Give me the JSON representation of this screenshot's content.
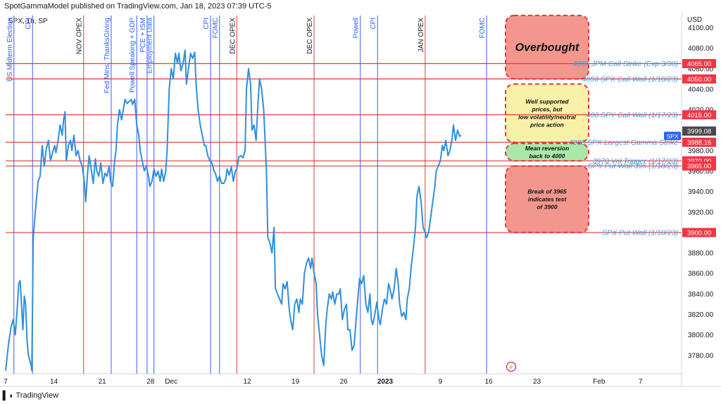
{
  "header": {
    "publisher": "SpotGammaModel published on TradingView.com, Jan 18, 2023 07:39 UTC-5",
    "symbol": "SPX, 1h, SP"
  },
  "branding": {
    "logo_text": "TradingView"
  },
  "colors": {
    "price_line": "#2f8fdc",
    "level_line": "#e03a3a",
    "event_blue": "#3d5afe",
    "event_red": "#e03a3a",
    "level_label": "#4a9ad8",
    "badge_red": "#f23645",
    "badge_dark": "#4a4a4a",
    "badge_blue": "#2962ff"
  },
  "chart_data": {
    "type": "line",
    "x_axis": {
      "ticks": [
        {
          "label": "7",
          "d": 0
        },
        {
          "label": "14",
          "d": 7
        },
        {
          "label": "21",
          "d": 14
        },
        {
          "label": "28",
          "d": 21
        },
        {
          "label": "Dec",
          "d": 24
        },
        {
          "label": "12",
          "d": 35
        },
        {
          "label": "19",
          "d": 42
        },
        {
          "label": "26",
          "d": 49
        },
        {
          "label": "2023",
          "d": 55
        },
        {
          "label": "9",
          "d": 63
        },
        {
          "label": "16",
          "d": 70
        },
        {
          "label": "23",
          "d": 77
        },
        {
          "label": "Feb",
          "d": 86
        },
        {
          "label": "7",
          "d": 92
        }
      ]
    },
    "y_axis": {
      "label": "USD",
      "range": [
        3762,
        4112
      ],
      "ticks": [
        3780,
        3800,
        3820,
        3840,
        3860,
        3880,
        3920,
        3940,
        3960,
        3980,
        4000,
        4020,
        4040,
        4060,
        4080,
        4100
      ]
    },
    "series": [
      {
        "values": [
          [
            0.0,
            3765
          ],
          [
            0.4,
            3790
          ],
          [
            0.8,
            3808
          ],
          [
            1.1,
            3815
          ],
          [
            1.4,
            3800
          ],
          [
            1.7,
            3828
          ],
          [
            1.9,
            3850
          ],
          [
            2.1,
            3853
          ],
          [
            2.3,
            3830
          ],
          [
            2.5,
            3805
          ],
          [
            2.7,
            3838
          ],
          [
            2.9,
            3830
          ],
          [
            3.1,
            3795
          ],
          [
            3.3,
            3780
          ],
          [
            3.5,
            3775
          ],
          [
            3.7,
            3770
          ],
          [
            3.8,
            3765
          ],
          [
            4.0,
            3895
          ],
          [
            4.3,
            3920
          ],
          [
            4.7,
            3950
          ],
          [
            5.0,
            3955
          ],
          [
            5.3,
            3985
          ],
          [
            5.6,
            3965
          ],
          [
            5.9,
            3982
          ],
          [
            6.2,
            3990
          ],
          [
            6.5,
            3970
          ],
          [
            6.8,
            3978
          ],
          [
            7.1,
            3985
          ],
          [
            7.3,
            3978
          ],
          [
            7.6,
            3990
          ],
          [
            7.9,
            4005
          ],
          [
            8.2,
            3995
          ],
          [
            8.4,
            4010
          ],
          [
            8.6,
            4018
          ],
          [
            8.8,
            3970
          ],
          [
            9.1,
            3985
          ],
          [
            9.4,
            3990
          ],
          [
            9.6,
            3980
          ],
          [
            9.9,
            3995
          ],
          [
            10.2,
            3975
          ],
          [
            10.5,
            3980
          ],
          [
            10.8,
            3970
          ],
          [
            11.1,
            3965
          ],
          [
            11.4,
            3950
          ],
          [
            11.6,
            3930
          ],
          [
            11.9,
            3960
          ],
          [
            12.1,
            3975
          ],
          [
            12.4,
            3962
          ],
          [
            12.7,
            3948
          ],
          [
            13.0,
            3972
          ],
          [
            13.2,
            3960
          ],
          [
            13.5,
            3955
          ],
          [
            13.8,
            3968
          ],
          [
            14.1,
            3948
          ],
          [
            14.4,
            3958
          ],
          [
            14.7,
            3955
          ],
          [
            15.0,
            3965
          ],
          [
            15.2,
            3950
          ],
          [
            15.5,
            3945
          ],
          [
            15.8,
            3970
          ],
          [
            16.0,
            3980
          ],
          [
            16.2,
            4005
          ],
          [
            16.5,
            4020
          ],
          [
            16.8,
            4010
          ],
          [
            17.1,
            4022
          ],
          [
            17.3,
            4030
          ],
          [
            17.6,
            4026
          ],
          [
            17.9,
            4028
          ],
          [
            18.2,
            4030
          ],
          [
            18.4,
            4025
          ],
          [
            18.7,
            4030
          ],
          [
            19.0,
            4005
          ],
          [
            19.3,
            3995
          ],
          [
            19.5,
            3980
          ],
          [
            19.8,
            3970
          ],
          [
            20.1,
            3960
          ],
          [
            20.4,
            3965
          ],
          [
            20.7,
            3955
          ],
          [
            20.9,
            3945
          ],
          [
            21.2,
            3950
          ],
          [
            21.5,
            3962
          ],
          [
            21.8,
            3955
          ],
          [
            22.1,
            3960
          ],
          [
            22.4,
            3950
          ],
          [
            22.6,
            3962
          ],
          [
            22.9,
            3950
          ],
          [
            23.2,
            3960
          ],
          [
            23.4,
            3980
          ],
          [
            23.7,
            4040
          ],
          [
            24.0,
            4060
          ],
          [
            24.3,
            4050
          ],
          [
            24.6,
            4075
          ],
          [
            24.9,
            4065
          ],
          [
            25.1,
            4075
          ],
          [
            25.4,
            4058
          ],
          [
            25.7,
            4065
          ],
          [
            26.0,
            4078
          ],
          [
            26.2,
            4045
          ],
          [
            26.5,
            4060
          ],
          [
            26.8,
            4075
          ],
          [
            27.1,
            4070
          ],
          [
            27.4,
            4076
          ],
          [
            27.6,
            4045
          ],
          [
            27.9,
            4020
          ],
          [
            28.2,
            4005
          ],
          [
            28.5,
            3995
          ],
          [
            28.8,
            3985
          ],
          [
            29.0,
            3985
          ],
          [
            29.3,
            3975
          ],
          [
            29.6,
            3970
          ],
          [
            29.9,
            3968
          ],
          [
            30.2,
            3960
          ],
          [
            30.4,
            3958
          ],
          [
            30.7,
            3950
          ],
          [
            31.0,
            3955
          ],
          [
            31.3,
            3948
          ],
          [
            31.6,
            3948
          ],
          [
            31.9,
            3952
          ],
          [
            32.1,
            3962
          ],
          [
            32.4,
            3956
          ],
          [
            32.7,
            3964
          ],
          [
            33.0,
            3950
          ],
          [
            33.3,
            3960
          ],
          [
            33.5,
            3962
          ],
          [
            33.8,
            3974
          ],
          [
            34.1,
            3975
          ],
          [
            34.4,
            3973
          ],
          [
            34.7,
            3980
          ],
          [
            34.9,
            4040
          ],
          [
            35.2,
            4060
          ],
          [
            35.5,
            4045
          ],
          [
            35.7,
            4000
          ],
          [
            36.0,
            4005
          ],
          [
            36.3,
            3990
          ],
          [
            36.6,
            4030
          ],
          [
            36.8,
            4050
          ],
          [
            37.1,
            4040
          ],
          [
            37.4,
            4020
          ],
          [
            37.6,
            3990
          ],
          [
            37.8,
            3960
          ],
          [
            38.0,
            3895
          ],
          [
            38.3,
            3890
          ],
          [
            38.6,
            3880
          ],
          [
            38.9,
            3905
          ],
          [
            39.1,
            3845
          ],
          [
            39.4,
            3840
          ],
          [
            39.7,
            3835
          ],
          [
            40.0,
            3830
          ],
          [
            40.2,
            3850
          ],
          [
            40.5,
            3845
          ],
          [
            40.8,
            3852
          ],
          [
            41.1,
            3825
          ],
          [
            41.3,
            3815
          ],
          [
            41.6,
            3805
          ],
          [
            41.9,
            3830
          ],
          [
            42.2,
            3835
          ],
          [
            42.5,
            3822
          ],
          [
            42.7,
            3835
          ],
          [
            43.0,
            3830
          ],
          [
            43.3,
            3860
          ],
          [
            43.6,
            3870
          ],
          [
            43.9,
            3875
          ],
          [
            44.2,
            3865
          ],
          [
            44.4,
            3875
          ],
          [
            44.7,
            3860
          ],
          [
            45.0,
            3850
          ],
          [
            45.2,
            3820
          ],
          [
            45.5,
            3800
          ],
          [
            45.8,
            3780
          ],
          [
            46.1,
            3770
          ],
          [
            46.4,
            3810
          ],
          [
            46.6,
            3825
          ],
          [
            46.9,
            3840
          ],
          [
            47.2,
            3835
          ],
          [
            47.4,
            3842
          ],
          [
            47.7,
            3830
          ],
          [
            48.0,
            3840
          ],
          [
            48.3,
            3840
          ],
          [
            48.5,
            3845
          ],
          [
            48.8,
            3815
          ],
          [
            49.1,
            3825
          ],
          [
            49.4,
            3830
          ],
          [
            49.6,
            3805
          ],
          [
            49.9,
            3805
          ],
          [
            50.2,
            3785
          ],
          [
            50.5,
            3790
          ],
          [
            50.8,
            3815
          ],
          [
            51.1,
            3840
          ],
          [
            51.3,
            3855
          ],
          [
            51.6,
            3850
          ],
          [
            51.9,
            3858
          ],
          [
            52.2,
            3830
          ],
          [
            52.5,
            3822
          ],
          [
            52.8,
            3840
          ],
          [
            53.0,
            3815
          ],
          [
            53.2,
            3810
          ],
          [
            53.5,
            3820
          ],
          [
            53.8,
            3832
          ],
          [
            54.1,
            3815
          ],
          [
            54.3,
            3810
          ],
          [
            54.6,
            3825
          ],
          [
            54.9,
            3835
          ],
          [
            55.2,
            3830
          ],
          [
            55.5,
            3850
          ],
          [
            55.7,
            3845
          ],
          [
            56.0,
            3835
          ],
          [
            56.3,
            3845
          ],
          [
            56.6,
            3865
          ],
          [
            56.9,
            3850
          ],
          [
            57.1,
            3830
          ],
          [
            57.4,
            3818
          ],
          [
            57.7,
            3822
          ],
          [
            58.0,
            3815
          ],
          [
            58.2,
            3835
          ],
          [
            58.5,
            3845
          ],
          [
            58.8,
            3868
          ],
          [
            59.1,
            3885
          ],
          [
            59.4,
            3905
          ],
          [
            59.6,
            3935
          ],
          [
            59.9,
            3945
          ],
          [
            60.2,
            3930
          ],
          [
            60.5,
            3905
          ],
          [
            60.8,
            3900
          ],
          [
            61.0,
            3895
          ],
          [
            61.3,
            3900
          ],
          [
            61.6,
            3915
          ],
          [
            61.9,
            3930
          ],
          [
            62.2,
            3945
          ],
          [
            62.4,
            3960
          ],
          [
            62.7,
            3965
          ],
          [
            63.0,
            3970
          ],
          [
            63.3,
            3985
          ],
          [
            63.5,
            3980
          ],
          [
            63.8,
            3990
          ],
          [
            64.1,
            3975
          ],
          [
            64.4,
            3980
          ],
          [
            64.7,
            3992
          ],
          [
            64.9,
            4005
          ],
          [
            65.2,
            3990
          ],
          [
            65.5,
            4000
          ],
          [
            65.8,
            3994
          ],
          [
            66.0,
            3995
          ]
        ]
      }
    ],
    "levels": [
      {
        "price": 4065,
        "label": "4065 JPM Call Strike (Exp 3/30)",
        "badge": "4065.00"
      },
      {
        "price": 4050,
        "label": "4050 SPX Call Wall (1/18/23)",
        "badge": "4050.00"
      },
      {
        "price": 4015,
        "label": "400 SPY Call Wall (1/17/23)",
        "badge": "4015.00"
      },
      {
        "price": 3988.16,
        "label": "4000 SPX Largest Gamma Strike",
        "badge": "3988.16"
      },
      {
        "price": 3970,
        "label": "3970 Vol Trigger (1/17/23)",
        "badge": "3970.00"
      },
      {
        "price": 3965,
        "label": "SPY Put Wall 395 (1/18/23)",
        "badge": "3965.00"
      },
      {
        "price": 3900,
        "label": "SPX Put Wall (1/18/23)",
        "badge": "3900.00"
      }
    ],
    "current_price": {
      "badge": "3999.08",
      "symbol": "SPX",
      "value": 3999.08
    },
    "events": [
      {
        "label": "US Midterm Election",
        "d": 1.2,
        "color": "blue"
      },
      {
        "label": "CPI",
        "d": 3.9,
        "color": "blue"
      },
      {
        "label": "NOV OPEX",
        "d": 11.3,
        "color": "red"
      },
      {
        "label": "Fed Mins, ThanksGiving",
        "d": 15.3,
        "color": "blue"
      },
      {
        "label": "Powell Speaking + GDP",
        "d": 19.0,
        "color": "blue"
      },
      {
        "label": "PCE + ISM",
        "d": 20.5,
        "color": "blue"
      },
      {
        "label": "Employment Data",
        "d": 21.5,
        "color": "blue"
      },
      {
        "label": "CPI",
        "d": 29.7,
        "color": "blue"
      },
      {
        "label": "FOMC",
        "d": 31.0,
        "color": "blue"
      },
      {
        "label": "DEC OPEX",
        "d": 33.5,
        "color": "red"
      },
      {
        "label": "DEC OPEX",
        "d": 44.7,
        "color": "red"
      },
      {
        "label": "Powell",
        "d": 51.4,
        "color": "blue"
      },
      {
        "label": "CPI",
        "d": 53.9,
        "color": "blue"
      },
      {
        "label": "JAN OPEX",
        "d": 60.8,
        "color": "red"
      },
      {
        "label": "FOMC",
        "d": 69.7,
        "color": "blue"
      }
    ],
    "zones": [
      {
        "label": "Overbought",
        "top": 4112,
        "bottom": 4050,
        "color": "#f28b82",
        "style": "title"
      },
      {
        "label": "Well supported\nprices, but\nlow volatility/neutral\nprice action",
        "top": 4045,
        "bottom": 3988,
        "color": "#f7ef9e",
        "style": "note"
      },
      {
        "label": "Mean reversion\nback to 4000",
        "top": 3987,
        "bottom": 3970,
        "color": "#9ee79e",
        "style": "note"
      },
      {
        "label": "Break of 3965\nindicates test\nof 3900",
        "top": 3965,
        "bottom": 3900,
        "color": "#f28b82",
        "style": "note"
      }
    ]
  }
}
